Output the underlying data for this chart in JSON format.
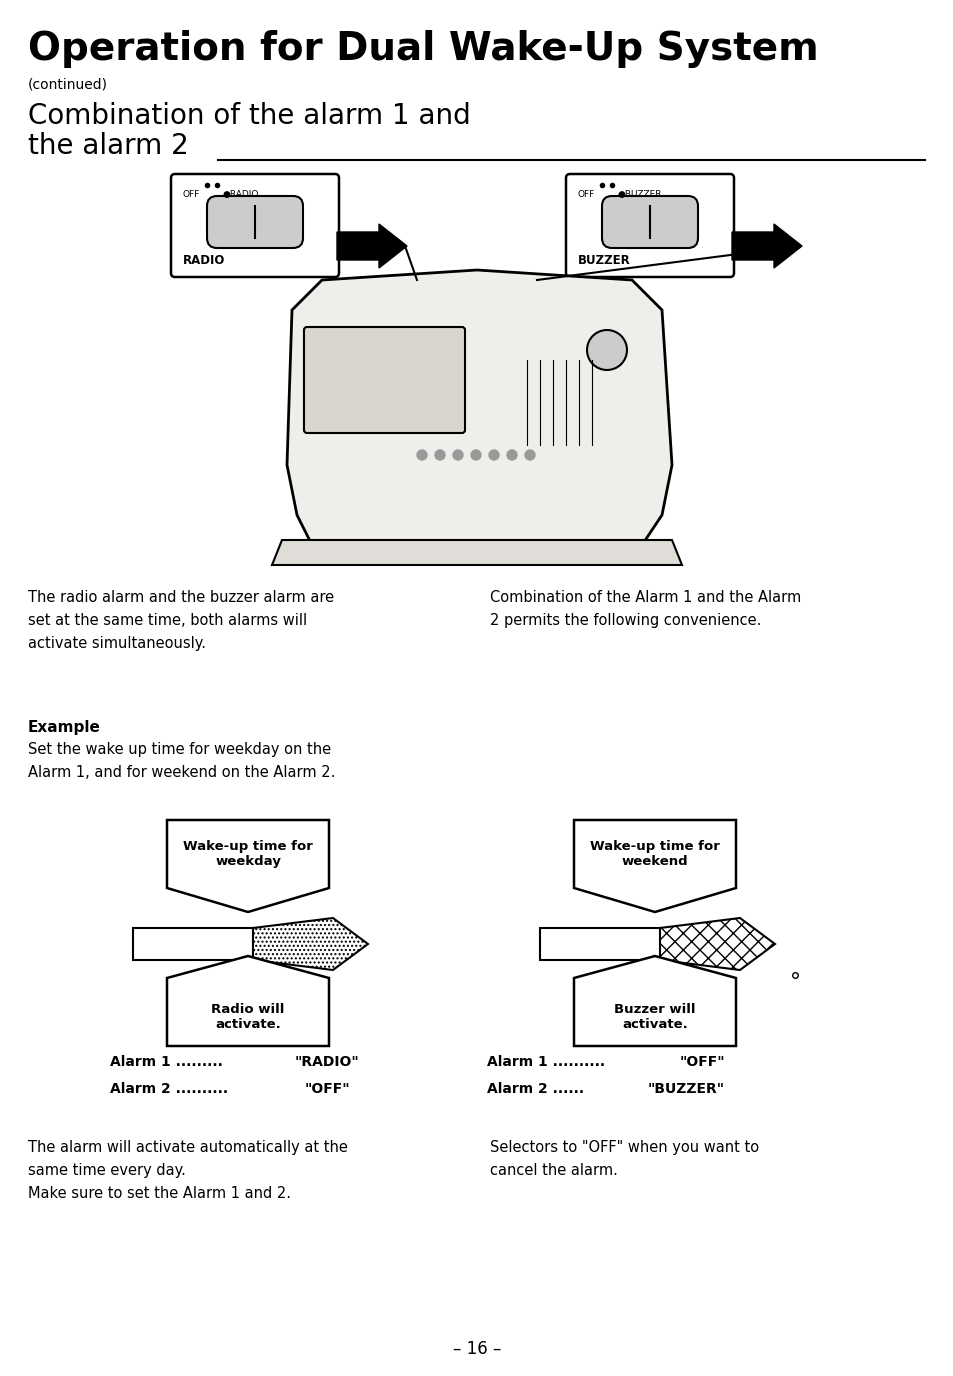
{
  "title": "Operation for Dual Wake-Up System",
  "subtitle": "(continued)",
  "section_title_line1": "Combination of the alarm 1 and",
  "section_title_line2": "the alarm 2",
  "para1_left": "The radio alarm and the buzzer alarm are\nset at the same time, both alarms will\nactivate simultaneously.",
  "para1_right": "Combination of the Alarm 1 and the Alarm\n2 permits the following convenience.",
  "example_label": "Example",
  "example_text": "Set the wake up time for weekday on the\nAlarm 1, and for weekend on the Alarm 2.",
  "box1_top": "Wake-up time for\nweekday",
  "box1_bottom": "Radio will\nactivate.",
  "box2_top": "Wake-up time for\nweekend",
  "box2_bottom": "Buzzer will\nactivate.",
  "alarm1_left_dots": "Alarm 1 .........",
  "alarm1_left_val": "\"RADIO\"",
  "alarm2_left_dots": "Alarm 2 ..........",
  "alarm2_left_val": "\"OFF\"",
  "alarm1_right_dots": "Alarm 1 ..........",
  "alarm1_right_val": "\"OFF\"",
  "alarm2_right_dots": "Alarm 2 ......",
  "alarm2_right_val": "\"BUZZER\"",
  "para2_left": "The alarm will activate automatically at the\nsame time every day.\nMake sure to set the Alarm 1 and 2.",
  "para2_right": "Selectors to \"OFF\" when you want to\ncancel the alarm.",
  "page_number": "– 16 –",
  "bg_color": "#ffffff",
  "text_color": "#000000"
}
